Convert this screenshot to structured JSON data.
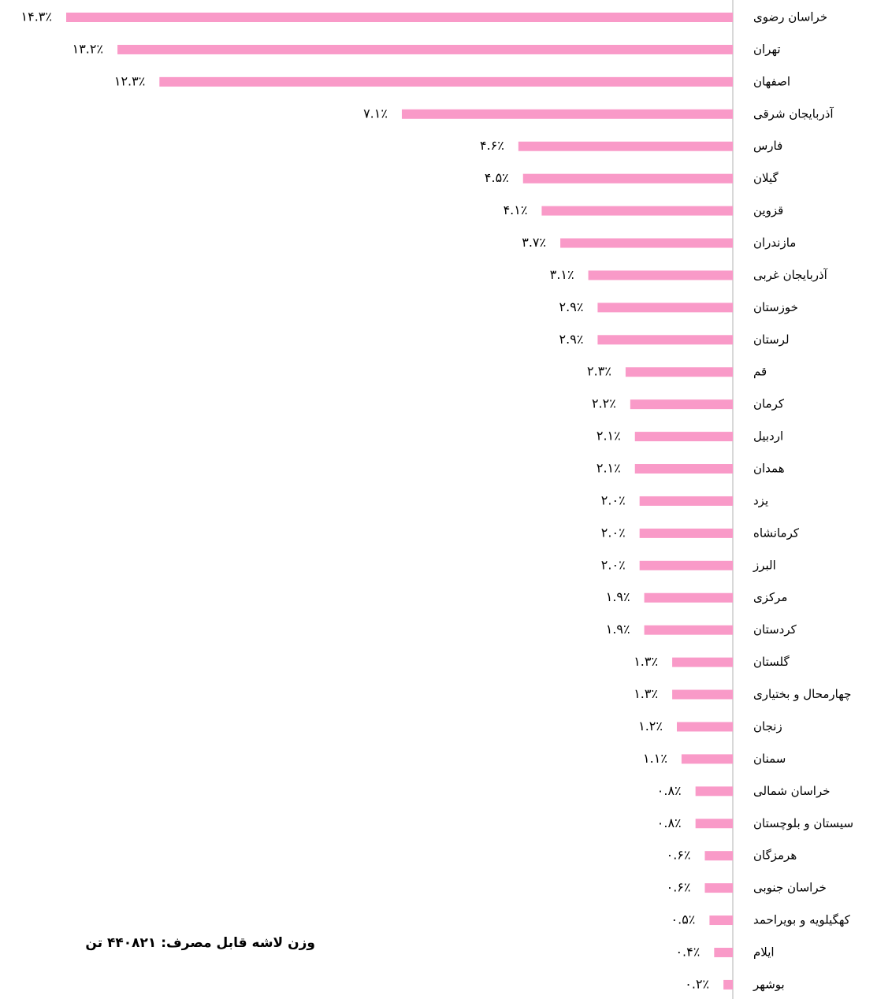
{
  "chart_data": {
    "type": "bar",
    "orientation": "horizontal",
    "color": "#f99ac8",
    "categories": [
      "خراسان رضوی",
      "تهران",
      "اصفهان",
      "آذربایجان شرقی",
      "فارس",
      "گیلان",
      "قزوین",
      "مازندران",
      "آذربایجان غربی",
      "خوزستان",
      "لرستان",
      "قم",
      "کرمان",
      "اردبیل",
      "همدان",
      "یزد",
      "کرمانشاه",
      "البرز",
      "مرکزی",
      "کردستان",
      "گلستان",
      "چهارمحال و بختیاری",
      "زنجان",
      "سمنان",
      "خراسان شمالی",
      "سیستان و بلوچستان",
      "هرمزگان",
      "خراسان جنوبی",
      "کهگیلویه و بویراحمد",
      "ایلام",
      "بوشهر"
    ],
    "values": [
      14.3,
      13.2,
      12.3,
      7.1,
      4.6,
      4.5,
      4.1,
      3.7,
      3.1,
      2.9,
      2.9,
      2.3,
      2.2,
      2.1,
      2.1,
      2.0,
      2.0,
      2.0,
      1.9,
      1.9,
      1.3,
      1.3,
      1.2,
      1.1,
      0.8,
      0.8,
      0.6,
      0.6,
      0.5,
      0.4,
      0.2
    ],
    "value_labels": [
      "۱۴.۳٪",
      "۱۳.۲٪",
      "۱۲.۳٪",
      "۷.۱٪",
      "۴.۶٪",
      "۴.۵٪",
      "۴.۱٪",
      "۳.۷٪",
      "۳.۱٪",
      "۲.۹٪",
      "۲.۹٪",
      "۲.۳٪",
      "۲.۲٪",
      "۲.۱٪",
      "۲.۱٪",
      "۲.۰٪",
      "۲.۰٪",
      "۲.۰٪",
      "۱.۹٪",
      "۱.۹٪",
      "۱.۳٪",
      "۱.۳٪",
      "۱.۲٪",
      "۱.۱٪",
      "۰.۸٪",
      "۰.۸٪",
      "۰.۶٪",
      "۰.۶٪",
      "۰.۵٪",
      "۰.۴٪",
      "۰.۲٪"
    ],
    "note": "وزن لاشه قابل مصرف:  ۴۴۰۸۲۱ تن"
  }
}
